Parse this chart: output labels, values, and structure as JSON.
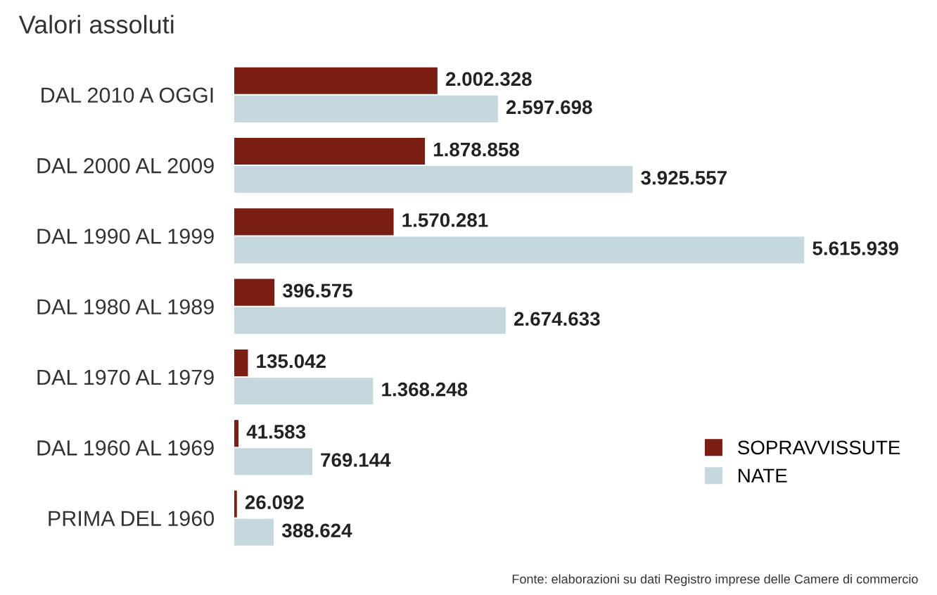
{
  "chart_data": {
    "type": "bar",
    "orientation": "horizontal",
    "title": "Valori assoluti",
    "categories": [
      "DAL 2010 A OGGI",
      "DAL 2000 AL 2009",
      "DAL 1990 AL 1999",
      "DAL 1980 AL 1989",
      "DAL 1970 AL 1979",
      "DAL 1960 AL 1969",
      "PRIMA DEL 1960"
    ],
    "series": [
      {
        "name": "SOPRAVVISSUTE",
        "color": "#7b1e14",
        "values": [
          2002328,
          1878858,
          1570281,
          396575,
          135042,
          41583,
          26092
        ],
        "value_labels": [
          "2.002.328",
          "1.878.858",
          "1.570.281",
          "396.575",
          "135.042",
          "41.583",
          "26.092"
        ]
      },
      {
        "name": "NATE",
        "color": "#c5d8de",
        "values": [
          2597698,
          3925557,
          5615939,
          2674633,
          1368248,
          769144,
          388624
        ],
        "value_labels": [
          "2.597.698",
          "3.925.557",
          "5.615.939",
          "2.674.633",
          "1.368.248",
          "769.144",
          "388.624"
        ]
      }
    ],
    "legend": "bottom right",
    "grid": false,
    "annotations": [
      "Fonte: elaborazioni su dati Registro imprese delle Camere di commercio"
    ]
  }
}
